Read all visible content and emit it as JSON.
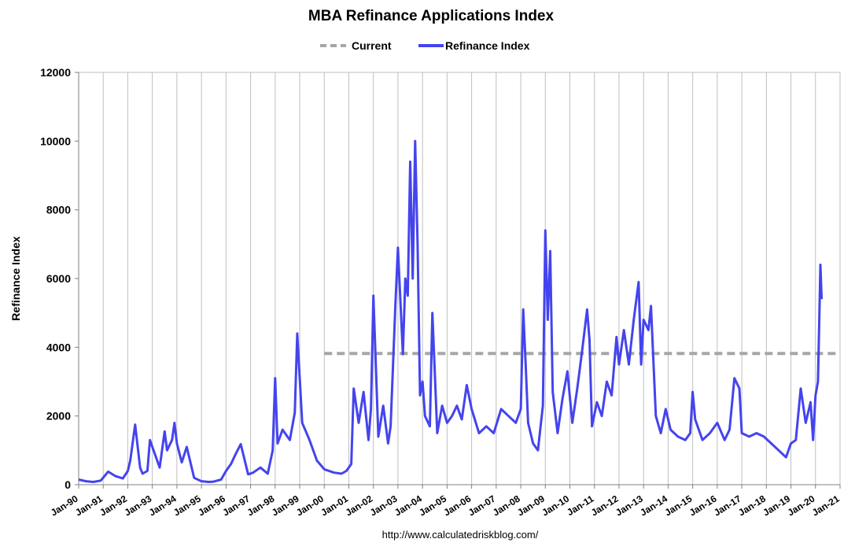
{
  "chart_data": {
    "type": "line",
    "title": "MBA Refinance Applications Index",
    "xlabel": "",
    "ylabel": "Refinance Index",
    "source": "http://www.calculatedriskblog.com/",
    "ylim": [
      0,
      12000
    ],
    "yticks": [
      0,
      2000,
      4000,
      6000,
      8000,
      10000,
      12000
    ],
    "ytick_labels": [
      "0",
      "2000",
      "4000",
      "6000",
      "8000",
      "10000",
      "12000"
    ],
    "xlim": [
      1990,
      2021
    ],
    "xtick_values": [
      1990,
      1991,
      1992,
      1993,
      1994,
      1995,
      1996,
      1997,
      1998,
      1999,
      2000,
      2001,
      2002,
      2003,
      2004,
      2005,
      2006,
      2007,
      2008,
      2009,
      2010,
      2011,
      2012,
      2013,
      2014,
      2015,
      2016,
      2017,
      2018,
      2019,
      2020,
      2021
    ],
    "xtick_labels": [
      "Jan-90",
      "Jan-91",
      "Jan-92",
      "Jan-93",
      "Jan-94",
      "Jan-95",
      "Jan-96",
      "Jan-97",
      "Jan-98",
      "Jan-99",
      "Jan-00",
      "Jan-01",
      "Jan-02",
      "Jan-03",
      "Jan-04",
      "Jan-05",
      "Jan-06",
      "Jan-07",
      "Jan-08",
      "Jan-09",
      "Jan-10",
      "Jan-11",
      "Jan-12",
      "Jan-13",
      "Jan-14",
      "Jan-15",
      "Jan-16",
      "Jan-17",
      "Jan-18",
      "Jan-19",
      "Jan-20",
      "Jan-21"
    ],
    "grid": "vertical",
    "legend_position": "top",
    "series": [
      {
        "name": "Current",
        "style": "dashed",
        "color": "#a6a6a6",
        "x": [
          2000.0,
          2021.0
        ],
        "y": [
          3820,
          3820
        ]
      },
      {
        "name": "Refinance Index",
        "style": "solid",
        "color": "#4444ee",
        "x": [
          1990.0,
          1990.3,
          1990.6,
          1990.9,
          1991.2,
          1991.5,
          1991.8,
          1992.0,
          1992.1,
          1992.3,
          1992.5,
          1992.6,
          1992.8,
          1992.9,
          1993.1,
          1993.3,
          1993.5,
          1993.6,
          1993.8,
          1993.9,
          1994.0,
          1994.2,
          1994.4,
          1994.7,
          1995.0,
          1995.3,
          1995.5,
          1995.8,
          1996.0,
          1996.2,
          1996.4,
          1996.6,
          1996.9,
          1997.1,
          1997.4,
          1997.7,
          1997.9,
          1998.0,
          1998.1,
          1998.3,
          1998.6,
          1998.8,
          1998.9,
          1999.1,
          1999.4,
          1999.7,
          2000.0,
          2000.4,
          2000.7,
          2000.9,
          2001.1,
          2001.2,
          2001.4,
          2001.6,
          2001.8,
          2001.9,
          2002.0,
          2002.2,
          2002.4,
          2002.6,
          2002.7,
          2002.9,
          2003.0,
          2003.2,
          2003.3,
          2003.4,
          2003.5,
          2003.6,
          2003.7,
          2003.8,
          2003.9,
          2004.0,
          2004.1,
          2004.3,
          2004.4,
          2004.6,
          2004.8,
          2005.0,
          2005.2,
          2005.4,
          2005.6,
          2005.8,
          2006.0,
          2006.3,
          2006.6,
          2006.9,
          2007.2,
          2007.5,
          2007.8,
          2008.0,
          2008.1,
          2008.2,
          2008.3,
          2008.5,
          2008.7,
          2008.9,
          2009.0,
          2009.1,
          2009.2,
          2009.3,
          2009.5,
          2009.7,
          2009.9,
          2010.1,
          2010.3,
          2010.5,
          2010.7,
          2010.8,
          2010.9,
          2011.1,
          2011.3,
          2011.5,
          2011.7,
          2011.9,
          2012.0,
          2012.2,
          2012.4,
          2012.6,
          2012.8,
          2012.9,
          2013.0,
          2013.2,
          2013.3,
          2013.5,
          2013.7,
          2013.9,
          2014.1,
          2014.4,
          2014.7,
          2014.9,
          2015.0,
          2015.1,
          2015.4,
          2015.7,
          2016.0,
          2016.3,
          2016.5,
          2016.7,
          2016.9,
          2017.0,
          2017.3,
          2017.6,
          2017.9,
          2018.2,
          2018.5,
          2018.8,
          2019.0,
          2019.2,
          2019.4,
          2019.6,
          2019.8,
          2019.9,
          2020.0,
          2020.1,
          2020.15,
          2020.2,
          2020.25
        ],
        "y": [
          150,
          100,
          80,
          120,
          380,
          250,
          180,
          400,
          700,
          1750,
          500,
          320,
          400,
          1300,
          900,
          500,
          1550,
          1000,
          1300,
          1800,
          1200,
          650,
          1100,
          200,
          100,
          80,
          90,
          150,
          400,
          600,
          900,
          1180,
          300,
          350,
          500,
          320,
          1000,
          3100,
          1200,
          1600,
          1300,
          2100,
          4400,
          1800,
          1300,
          700,
          450,
          350,
          320,
          400,
          600,
          2800,
          1800,
          2700,
          1300,
          2200,
          5500,
          1400,
          2300,
          1200,
          1700,
          5300,
          6900,
          3800,
          6000,
          5500,
          9400,
          6000,
          10000,
          7000,
          2600,
          3000,
          2000,
          1700,
          5000,
          1500,
          2300,
          1800,
          2000,
          2300,
          1900,
          2900,
          2200,
          1500,
          1700,
          1500,
          2200,
          2000,
          1800,
          2200,
          5100,
          3500,
          1800,
          1200,
          1000,
          2300,
          7400,
          4800,
          6800,
          2700,
          1500,
          2500,
          3300,
          1800,
          2800,
          3900,
          5100,
          4200,
          1700,
          2400,
          2000,
          3000,
          2600,
          4300,
          3500,
          4500,
          3500,
          4800,
          5900,
          3500,
          4800,
          4500,
          5200,
          2000,
          1500,
          2200,
          1600,
          1400,
          1300,
          1500,
          2700,
          1900,
          1300,
          1500,
          1800,
          1300,
          1600,
          3100,
          2800,
          1500,
          1400,
          1500,
          1400,
          1200,
          1000,
          800,
          1200,
          1300,
          2800,
          1800,
          2400,
          1300,
          2600,
          3000,
          4700,
          6400,
          5400
        ]
      }
    ]
  }
}
